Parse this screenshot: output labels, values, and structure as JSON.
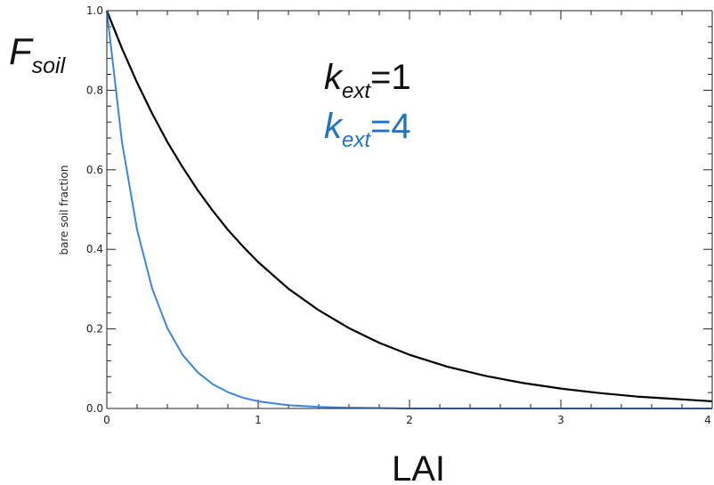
{
  "chart_data": {
    "type": "line",
    "title": "",
    "xlabel": "LAI",
    "ylabel": "bare soil fraction",
    "y_annotation": {
      "main": "F",
      "sub": "soil"
    },
    "xlim": [
      0,
      4
    ],
    "ylim": [
      0,
      1
    ],
    "x_ticks": [
      {
        "value": 0,
        "label": "0"
      },
      {
        "value": 1,
        "label": "1"
      },
      {
        "value": 2,
        "label": "2"
      },
      {
        "value": 3,
        "label": "3"
      },
      {
        "value": 4,
        "label": "4"
      }
    ],
    "y_ticks": [
      {
        "value": 0.0,
        "label": "0.0"
      },
      {
        "value": 0.2,
        "label": "0.2"
      },
      {
        "value": 0.4,
        "label": "0.4"
      },
      {
        "value": 0.6,
        "label": "0.6"
      },
      {
        "value": 0.8,
        "label": "0.8"
      },
      {
        "value": 1.0,
        "label": "1.0"
      }
    ],
    "x": [
      0,
      0.1,
      0.2,
      0.3,
      0.4,
      0.5,
      0.6,
      0.7,
      0.8,
      0.9,
      1.0,
      1.2,
      1.4,
      1.6,
      1.8,
      2.0,
      2.25,
      2.5,
      2.75,
      3.0,
      3.25,
      3.5,
      3.75,
      4.0
    ],
    "series": [
      {
        "legend_k": "k",
        "legend_sub": "ext",
        "legend_val": "=1",
        "color": "#000000",
        "values": [
          1.0,
          0.905,
          0.819,
          0.741,
          0.67,
          0.607,
          0.549,
          0.497,
          0.449,
          0.407,
          0.368,
          0.301,
          0.247,
          0.202,
          0.165,
          0.135,
          0.105,
          0.082,
          0.064,
          0.05,
          0.039,
          0.03,
          0.024,
          0.018
        ]
      },
      {
        "legend_k": "k",
        "legend_sub": "ext",
        "legend_val": "=4",
        "color": "#3a86e0",
        "values": [
          1.0,
          0.67,
          0.449,
          0.301,
          0.202,
          0.135,
          0.091,
          0.061,
          0.041,
          0.027,
          0.018,
          0.008,
          0.004,
          0.002,
          0.001,
          0.0,
          0.0,
          0.0,
          0.0,
          0.0,
          0.0,
          0.0,
          0.0,
          0.0
        ]
      }
    ],
    "legend_color_k1": "#111111",
    "legend_color_k4": "#1f73c4"
  }
}
